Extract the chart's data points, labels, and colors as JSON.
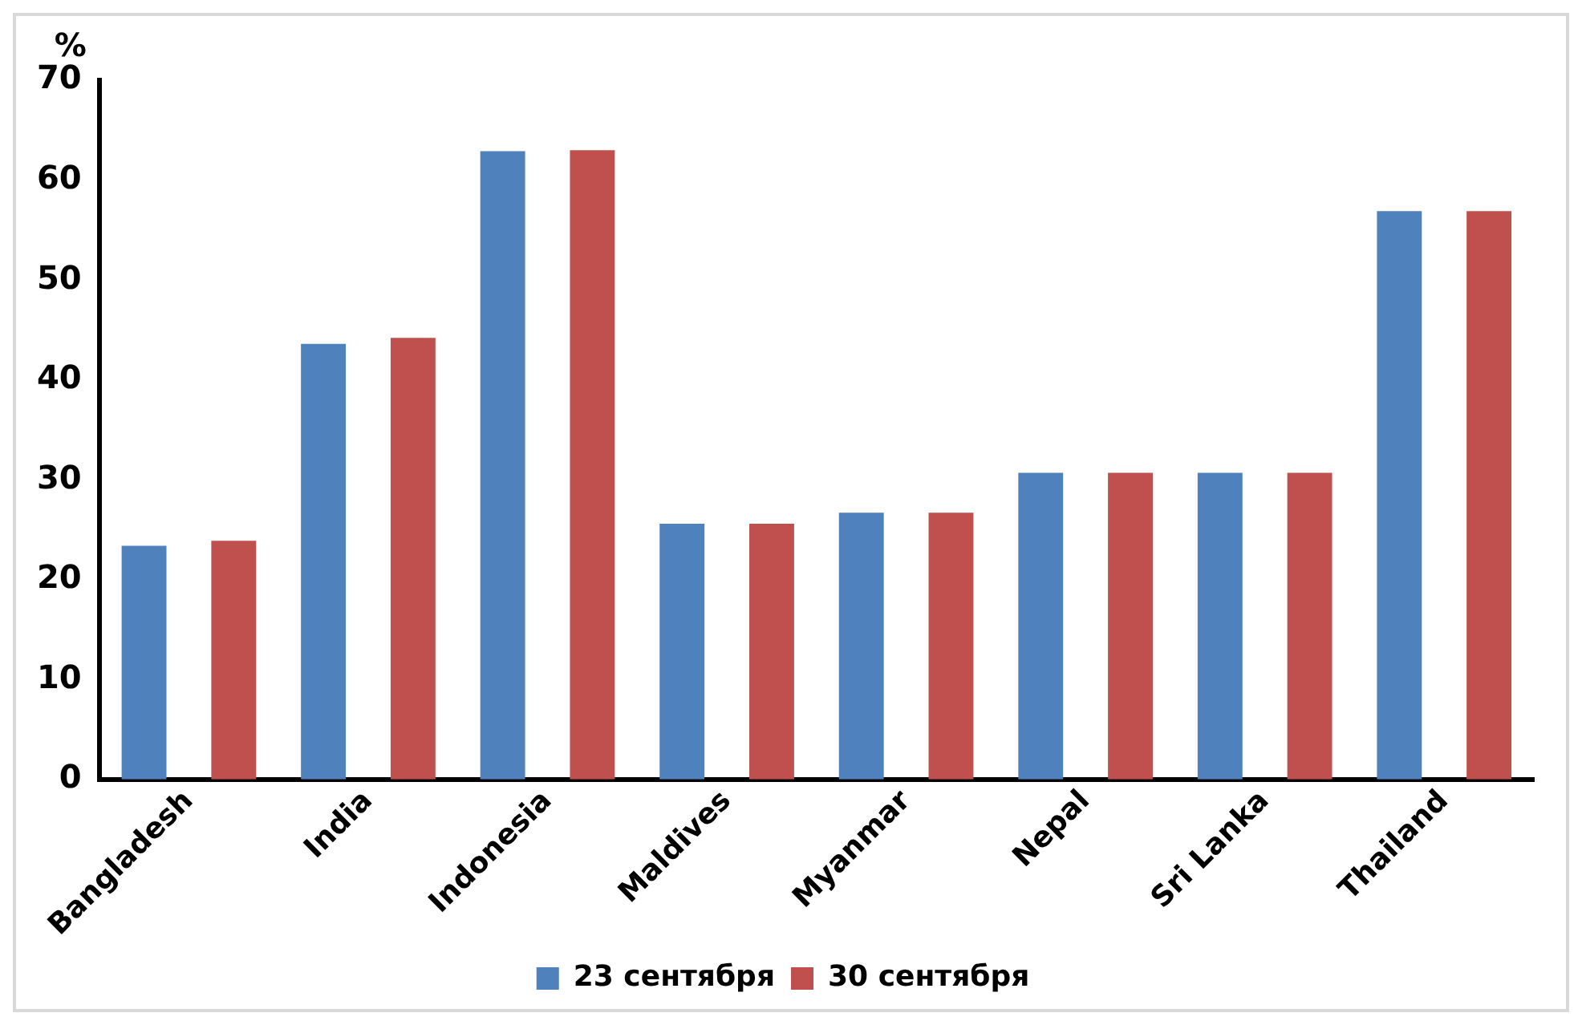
{
  "chart_data": {
    "type": "bar",
    "ylabel": "%",
    "categories": [
      "Bangladesh",
      "India",
      "Indonesia",
      "Maldives",
      "Myanmar",
      "Nepal",
      "Sri Lanka",
      "Thailand"
    ],
    "series": [
      {
        "name": "23 сентября",
        "color": "#4f81bd",
        "values": [
          23.4,
          43.6,
          62.9,
          25.6,
          26.7,
          30.7,
          30.7,
          56.9
        ]
      },
      {
        "name": "30 сентября",
        "color": "#c0504d",
        "values": [
          23.9,
          44.2,
          63.0,
          25.6,
          26.7,
          30.7,
          30.7,
          56.9
        ]
      }
    ],
    "ylim": [
      0,
      70
    ],
    "yticks": [
      0,
      10,
      20,
      30,
      40,
      50,
      60,
      70
    ],
    "grid": false,
    "legend": "bottom"
  }
}
